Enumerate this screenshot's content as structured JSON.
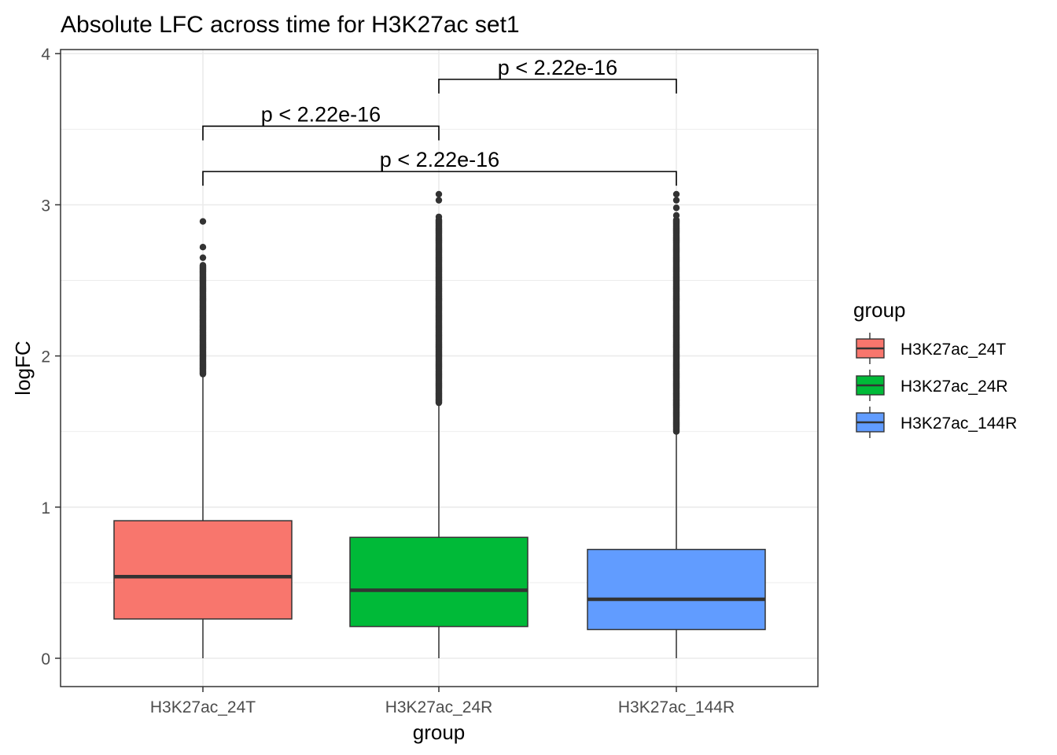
{
  "chart_data": {
    "type": "boxplot",
    "title": "Absolute LFC across time for H3K27ac set1",
    "xlabel": "group",
    "ylabel": "logFC",
    "ylim": [
      -0.18,
      4.05
    ],
    "yticks": [
      0,
      1,
      2,
      3,
      4
    ],
    "grid": true,
    "legend": {
      "title": "group",
      "position": "right",
      "entries": [
        "H3K27ac_24T",
        "H3K27ac_24R",
        "H3K27ac_144R"
      ]
    },
    "categories": [
      "H3K27ac_24T",
      "H3K27ac_24R",
      "H3K27ac_144R"
    ],
    "colors": [
      "#F8766D",
      "#00BA38",
      "#619CFF"
    ],
    "boxes": [
      {
        "name": "H3K27ac_24T",
        "min": 0.0,
        "q1": 0.26,
        "median": 0.54,
        "q3": 0.91,
        "max": 1.88,
        "outliers_from": 1.88,
        "outliers_to": 2.6,
        "extra_outliers": [
          2.65,
          2.72,
          2.89
        ]
      },
      {
        "name": "H3K27ac_24R",
        "min": 0.0,
        "q1": 0.21,
        "median": 0.45,
        "q3": 0.8,
        "max": 1.69,
        "outliers_from": 1.69,
        "outliers_to": 2.9,
        "extra_outliers": [
          2.92,
          3.03,
          3.07
        ]
      },
      {
        "name": "H3K27ac_144R",
        "min": 0.0,
        "q1": 0.19,
        "median": 0.39,
        "q3": 0.72,
        "max": 1.5,
        "outliers_from": 1.5,
        "outliers_to": 2.9,
        "extra_outliers": [
          2.93,
          2.98,
          3.03,
          3.07
        ]
      }
    ],
    "comparisons": [
      {
        "from": 1,
        "to": 2,
        "y": 3.83,
        "label": "p < 2.22e-16"
      },
      {
        "from": 0,
        "to": 1,
        "y": 3.52,
        "label": "p < 2.22e-16"
      },
      {
        "from": 0,
        "to": 2,
        "y": 3.22,
        "label": "p < 2.22e-16"
      }
    ]
  }
}
